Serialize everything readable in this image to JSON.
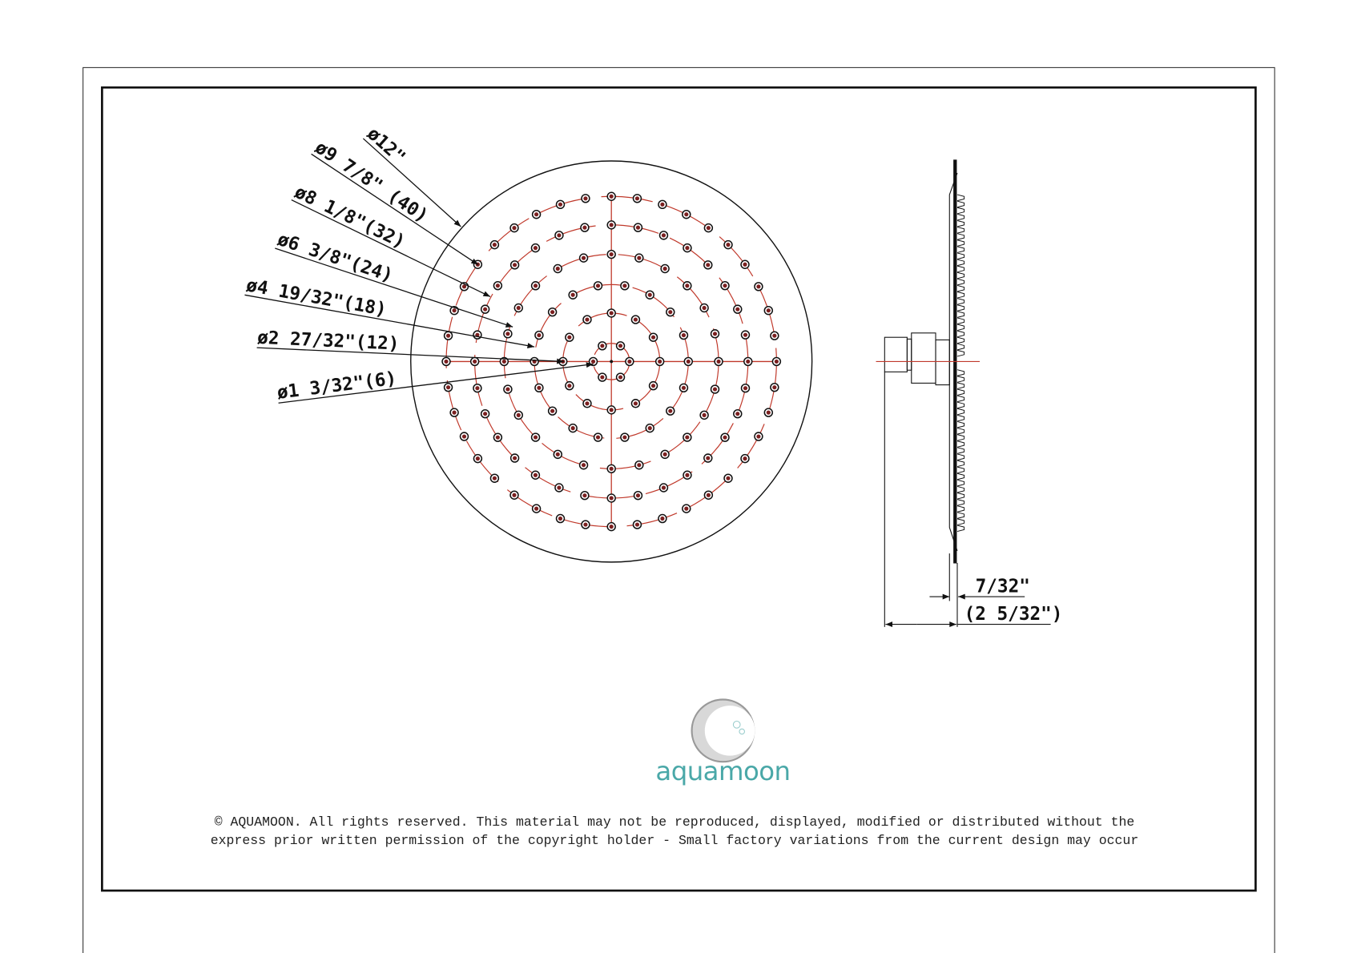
{
  "drawing": {
    "outer_diameter_label": "ø12\"",
    "rings": [
      {
        "label": "ø9 7/8\" (40)",
        "holes": 40
      },
      {
        "label": "ø8 1/8\"(32)",
        "holes": 32
      },
      {
        "label": "ø6 3/8\"(24)",
        "holes": 24
      },
      {
        "label": "ø4 19/32\"(18)",
        "holes": 18
      },
      {
        "label": "ø2 27/32\"(12)",
        "holes": 12
      },
      {
        "label": "ø1 3/32\"(6)",
        "holes": 6
      }
    ],
    "side_view": {
      "plate_thickness_label": "7/32\"",
      "total_depth_label": "(2 5/32\")"
    },
    "colors": {
      "line": "#111111",
      "center_line": "#c0392b",
      "hole_fill": "#7a1f1f",
      "logo": "#4aa8a8"
    }
  },
  "logo": {
    "text": "aquamoon"
  },
  "footer": {
    "line1": "© AQUAMOON. All rights reserved. This material may not be reproduced, displayed, modified or distributed without the",
    "line2": "express prior written permission of the copyright holder - Small factory variations from the current design may occur"
  }
}
